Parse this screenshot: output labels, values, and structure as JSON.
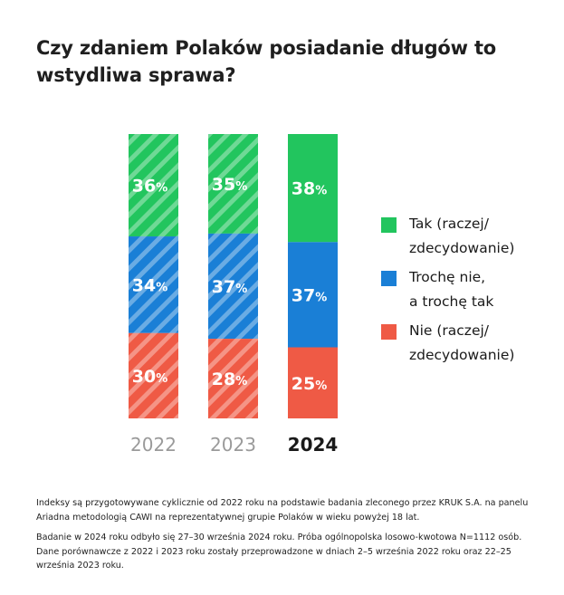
{
  "title": "Czy zdaniem Polaków posiadanie długów to wstydliwa sprawa?",
  "colors": {
    "tak": "#22c55e",
    "troche": "#1a7fd6",
    "nie": "#ef5a45",
    "year_past": "#9a9a9a",
    "year_current": "#1a1a1a"
  },
  "chart_data": {
    "type": "bar",
    "stacked": true,
    "percent": true,
    "categories": [
      "2022",
      "2023",
      "2024"
    ],
    "series": [
      {
        "name": "Tak (raczej/ zdecydowanie)",
        "values": [
          36,
          35,
          38
        ],
        "color": "#22c55e"
      },
      {
        "name": "Trochę nie, a trochę tak",
        "values": [
          34,
          37,
          37
        ],
        "color": "#1a7fd6"
      },
      {
        "name": "Nie (raczej/ zdecydowanie)",
        "values": [
          30,
          28,
          25
        ],
        "color": "#ef5a45"
      }
    ],
    "labels": [
      [
        "36",
        "35",
        "38"
      ],
      [
        "34",
        "37",
        "37"
      ],
      [
        "30",
        "28",
        "25"
      ]
    ],
    "unit": "%",
    "ylim": [
      0,
      100
    ],
    "legend_position": "right",
    "hatched_categories": [
      "2022",
      "2023"
    ]
  },
  "legend": [
    {
      "label": "Tak (raczej/\nzdecydowanie)",
      "color": "#22c55e"
    },
    {
      "label": "Trochę nie,\na trochę tak",
      "color": "#1a7fd6"
    },
    {
      "label": "Nie (raczej/\nzdecydowanie)",
      "color": "#ef5a45"
    }
  ],
  "notes": [
    "Indeksy są przygotowywane cyklicznie od 2022 roku na podstawie badania zleconego przez KRUK S.A. na panelu Ariadna metodologią CAWI na reprezentatywnej grupie Polaków w wieku powyżej 18 lat.",
    "Badanie w 2024 roku odbyło się 27–30 września 2024 roku. Próba ogólnopolska losowo-kwotowa N=1112 osób. Dane porównawcze z 2022 i 2023 roku zostały przeprowadzone w dniach 2–5 września 2022 roku oraz 22–25 września 2023 roku."
  ]
}
